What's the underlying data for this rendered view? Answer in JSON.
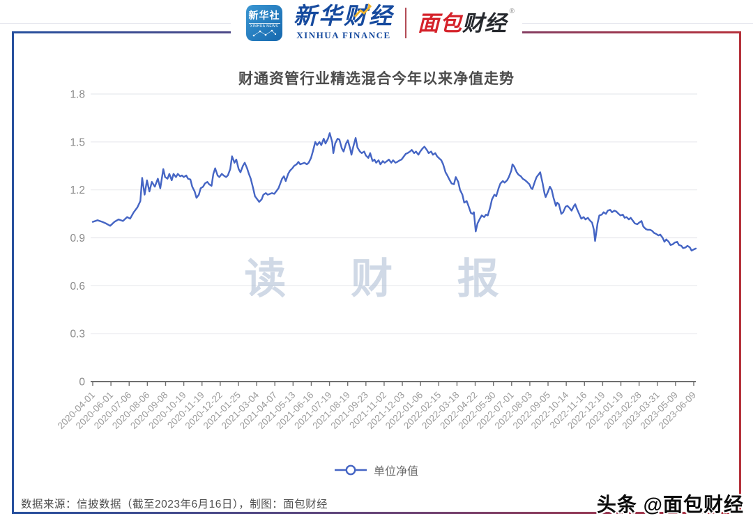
{
  "header": {
    "xinhua_news_icon": {
      "line1": "新华社",
      "line2": "XINHUA NEWS"
    },
    "xinhua_finance": {
      "cn": "新华财经",
      "en": "XINHUA FINANCE"
    },
    "mianbao_logo": {
      "part1": "面包",
      "part2": "财经",
      "reg_mark": "®"
    }
  },
  "footer": {
    "source_text": "数据来源：信披数据（截至2023年6月16日），制图：面包财经",
    "credit": "头条 @面包财经"
  },
  "watermark_text": "读 财 报",
  "colors": {
    "line": "#4565c4",
    "grid": "#e8e9ed",
    "axis": "#6f6f6f",
    "x_tick_label": "#9b9b9b",
    "y_tick_label": "#8a8a8a",
    "title": "#4c4c4c",
    "watermark": "#b4c3d8",
    "border_left_blue": "#27509e",
    "border_right_red": "#b5323c",
    "brand_blue": "#164a9e",
    "brand_red": "#d5232b"
  },
  "chart_data": {
    "type": "line",
    "title": "财通资管行业精选混合今年以来净值走势",
    "series_name": "单位净值",
    "legend_position": "bottom",
    "grid": true,
    "ylim": [
      0,
      1.8
    ],
    "y_ticks": [
      0,
      0.3,
      0.6,
      0.9,
      1.2,
      1.5,
      1.8
    ],
    "x_tick_labels": [
      "2020-04-01",
      "2020-06-01",
      "2020-07-06",
      "2020-08-06",
      "2020-09-08",
      "2020-10-19",
      "2020-11-19",
      "2020-12-22",
      "2021-01-25",
      "2021-03-04",
      "2021-04-07",
      "2021-05-13",
      "2021-06-16",
      "2021-07-19",
      "2021-08-19",
      "2021-09-23",
      "2021-11-02",
      "2021-12-03",
      "2022-01-06",
      "2022-02-15",
      "2022-03-18",
      "2022-04-22",
      "2022-05-30",
      "2022-07-01",
      "2022-08-03",
      "2022-09-05",
      "2022-10-14",
      "2022-11-16",
      "2022-12-19",
      "2023-01-19",
      "2023-02-28",
      "2023-03-31",
      "2023-05-09",
      "2023-06-09"
    ],
    "points": [
      [
        0.0,
        1.0
      ],
      [
        0.008,
        1.01
      ],
      [
        0.016,
        1.0
      ],
      [
        0.022,
        0.99
      ],
      [
        0.029,
        0.975
      ],
      [
        0.036,
        1.0
      ],
      [
        0.043,
        1.015
      ],
      [
        0.05,
        1.005
      ],
      [
        0.057,
        1.03
      ],
      [
        0.062,
        1.02
      ],
      [
        0.068,
        1.06
      ],
      [
        0.074,
        1.09
      ],
      [
        0.079,
        1.13
      ],
      [
        0.082,
        1.275
      ],
      [
        0.086,
        1.17
      ],
      [
        0.09,
        1.26
      ],
      [
        0.094,
        1.19
      ],
      [
        0.098,
        1.25
      ],
      [
        0.103,
        1.22
      ],
      [
        0.108,
        1.27
      ],
      [
        0.112,
        1.21
      ],
      [
        0.117,
        1.33
      ],
      [
        0.12,
        1.28
      ],
      [
        0.124,
        1.27
      ],
      [
        0.127,
        1.3
      ],
      [
        0.131,
        1.26
      ],
      [
        0.134,
        1.3
      ],
      [
        0.138,
        1.28
      ],
      [
        0.141,
        1.3
      ],
      [
        0.145,
        1.285
      ],
      [
        0.148,
        1.29
      ],
      [
        0.151,
        1.28
      ],
      [
        0.155,
        1.29
      ],
      [
        0.158,
        1.27
      ],
      [
        0.162,
        1.265
      ],
      [
        0.165,
        1.22
      ],
      [
        0.169,
        1.19
      ],
      [
        0.172,
        1.15
      ],
      [
        0.176,
        1.17
      ],
      [
        0.179,
        1.21
      ],
      [
        0.183,
        1.22
      ],
      [
        0.186,
        1.24
      ],
      [
        0.19,
        1.25
      ],
      [
        0.193,
        1.235
      ],
      [
        0.197,
        1.225
      ],
      [
        0.2,
        1.3
      ],
      [
        0.203,
        1.335
      ],
      [
        0.207,
        1.29
      ],
      [
        0.21,
        1.28
      ],
      [
        0.214,
        1.3
      ],
      [
        0.217,
        1.29
      ],
      [
        0.221,
        1.28
      ],
      [
        0.224,
        1.29
      ],
      [
        0.228,
        1.33
      ],
      [
        0.231,
        1.41
      ],
      [
        0.235,
        1.37
      ],
      [
        0.238,
        1.39
      ],
      [
        0.242,
        1.33
      ],
      [
        0.245,
        1.31
      ],
      [
        0.249,
        1.35
      ],
      [
        0.252,
        1.37
      ],
      [
        0.256,
        1.335
      ],
      [
        0.259,
        1.3
      ],
      [
        0.262,
        1.27
      ],
      [
        0.266,
        1.21
      ],
      [
        0.269,
        1.16
      ],
      [
        0.273,
        1.14
      ],
      [
        0.276,
        1.125
      ],
      [
        0.28,
        1.14
      ],
      [
        0.283,
        1.17
      ],
      [
        0.287,
        1.18
      ],
      [
        0.29,
        1.17
      ],
      [
        0.294,
        1.175
      ],
      [
        0.297,
        1.18
      ],
      [
        0.301,
        1.175
      ],
      [
        0.304,
        1.19
      ],
      [
        0.308,
        1.21
      ],
      [
        0.311,
        1.24
      ],
      [
        0.314,
        1.27
      ],
      [
        0.317,
        1.285
      ],
      [
        0.32,
        1.255
      ],
      [
        0.324,
        1.3
      ],
      [
        0.327,
        1.32
      ],
      [
        0.331,
        1.335
      ],
      [
        0.334,
        1.35
      ],
      [
        0.338,
        1.36
      ],
      [
        0.341,
        1.375
      ],
      [
        0.344,
        1.36
      ],
      [
        0.348,
        1.365
      ],
      [
        0.351,
        1.37
      ],
      [
        0.355,
        1.36
      ],
      [
        0.358,
        1.37
      ],
      [
        0.362,
        1.4
      ],
      [
        0.365,
        1.44
      ],
      [
        0.369,
        1.5
      ],
      [
        0.372,
        1.48
      ],
      [
        0.376,
        1.5
      ],
      [
        0.379,
        1.48
      ],
      [
        0.383,
        1.52
      ],
      [
        0.386,
        1.49
      ],
      [
        0.39,
        1.52
      ],
      [
        0.393,
        1.555
      ],
      [
        0.397,
        1.5
      ],
      [
        0.399,
        1.43
      ],
      [
        0.402,
        1.49
      ],
      [
        0.406,
        1.52
      ],
      [
        0.409,
        1.515
      ],
      [
        0.413,
        1.46
      ],
      [
        0.416,
        1.44
      ],
      [
        0.42,
        1.49
      ],
      [
        0.423,
        1.51
      ],
      [
        0.427,
        1.455
      ],
      [
        0.429,
        1.42
      ],
      [
        0.432,
        1.47
      ],
      [
        0.436,
        1.525
      ],
      [
        0.439,
        1.465
      ],
      [
        0.443,
        1.44
      ],
      [
        0.446,
        1.43
      ],
      [
        0.45,
        1.44
      ],
      [
        0.453,
        1.415
      ],
      [
        0.457,
        1.4
      ],
      [
        0.46,
        1.43
      ],
      [
        0.464,
        1.38
      ],
      [
        0.467,
        1.39
      ],
      [
        0.47,
        1.37
      ],
      [
        0.474,
        1.385
      ],
      [
        0.477,
        1.36
      ],
      [
        0.481,
        1.38
      ],
      [
        0.484,
        1.37
      ],
      [
        0.488,
        1.38
      ],
      [
        0.491,
        1.39
      ],
      [
        0.495,
        1.37
      ],
      [
        0.498,
        1.385
      ],
      [
        0.502,
        1.37
      ],
      [
        0.505,
        1.375
      ],
      [
        0.509,
        1.385
      ],
      [
        0.512,
        1.39
      ],
      [
        0.516,
        1.41
      ],
      [
        0.519,
        1.425
      ],
      [
        0.522,
        1.43
      ],
      [
        0.526,
        1.44
      ],
      [
        0.529,
        1.45
      ],
      [
        0.533,
        1.43
      ],
      [
        0.536,
        1.44
      ],
      [
        0.54,
        1.42
      ],
      [
        0.543,
        1.44
      ],
      [
        0.547,
        1.46
      ],
      [
        0.55,
        1.47
      ],
      [
        0.554,
        1.45
      ],
      [
        0.557,
        1.43
      ],
      [
        0.561,
        1.44
      ],
      [
        0.564,
        1.42
      ],
      [
        0.568,
        1.43
      ],
      [
        0.571,
        1.41
      ],
      [
        0.575,
        1.395
      ],
      [
        0.578,
        1.385
      ],
      [
        0.581,
        1.36
      ],
      [
        0.585,
        1.31
      ],
      [
        0.588,
        1.29
      ],
      [
        0.592,
        1.26
      ],
      [
        0.595,
        1.24
      ],
      [
        0.599,
        1.235
      ],
      [
        0.602,
        1.28
      ],
      [
        0.606,
        1.25
      ],
      [
        0.609,
        1.2
      ],
      [
        0.613,
        1.17
      ],
      [
        0.616,
        1.12
      ],
      [
        0.62,
        1.13
      ],
      [
        0.623,
        1.1
      ],
      [
        0.627,
        1.055
      ],
      [
        0.63,
        1.05
      ],
      [
        0.632,
        1.06
      ],
      [
        0.635,
        0.94
      ],
      [
        0.638,
        0.99
      ],
      [
        0.642,
        1.02
      ],
      [
        0.645,
        1.04
      ],
      [
        0.649,
        1.03
      ],
      [
        0.652,
        1.045
      ],
      [
        0.655,
        1.04
      ],
      [
        0.659,
        1.09
      ],
      [
        0.662,
        1.14
      ],
      [
        0.666,
        1.17
      ],
      [
        0.669,
        1.16
      ],
      [
        0.673,
        1.21
      ],
      [
        0.676,
        1.24
      ],
      [
        0.68,
        1.255
      ],
      [
        0.683,
        1.245
      ],
      [
        0.687,
        1.26
      ],
      [
        0.69,
        1.28
      ],
      [
        0.694,
        1.32
      ],
      [
        0.696,
        1.36
      ],
      [
        0.699,
        1.345
      ],
      [
        0.703,
        1.31
      ],
      [
        0.706,
        1.295
      ],
      [
        0.71,
        1.285
      ],
      [
        0.713,
        1.27
      ],
      [
        0.717,
        1.26
      ],
      [
        0.72,
        1.25
      ],
      [
        0.724,
        1.235
      ],
      [
        0.727,
        1.21
      ],
      [
        0.729,
        1.205
      ],
      [
        0.733,
        1.25
      ],
      [
        0.736,
        1.28
      ],
      [
        0.74,
        1.3
      ],
      [
        0.742,
        1.31
      ],
      [
        0.746,
        1.24
      ],
      [
        0.749,
        1.18
      ],
      [
        0.751,
        1.155
      ],
      [
        0.755,
        1.19
      ],
      [
        0.758,
        1.22
      ],
      [
        0.761,
        1.2
      ],
      [
        0.764,
        1.15
      ],
      [
        0.768,
        1.1
      ],
      [
        0.77,
        1.12
      ],
      [
        0.773,
        1.11
      ],
      [
        0.777,
        1.05
      ],
      [
        0.78,
        1.06
      ],
      [
        0.784,
        1.095
      ],
      [
        0.787,
        1.1
      ],
      [
        0.791,
        1.085
      ],
      [
        0.794,
        1.07
      ],
      [
        0.798,
        1.1
      ],
      [
        0.8,
        1.11
      ],
      [
        0.803,
        1.08
      ],
      [
        0.807,
        1.045
      ],
      [
        0.81,
        1.02
      ],
      [
        0.814,
        1.03
      ],
      [
        0.817,
        1.015
      ],
      [
        0.821,
        1.025
      ],
      [
        0.824,
        1.01
      ],
      [
        0.828,
        0.995
      ],
      [
        0.831,
        0.95
      ],
      [
        0.833,
        0.88
      ],
      [
        0.837,
        0.99
      ],
      [
        0.84,
        1.04
      ],
      [
        0.844,
        1.045
      ],
      [
        0.847,
        1.06
      ],
      [
        0.851,
        1.05
      ],
      [
        0.854,
        1.07
      ],
      [
        0.858,
        1.075
      ],
      [
        0.861,
        1.06
      ],
      [
        0.865,
        1.07
      ],
      [
        0.868,
        1.065
      ],
      [
        0.872,
        1.05
      ],
      [
        0.875,
        1.04
      ],
      [
        0.879,
        1.045
      ],
      [
        0.882,
        1.025
      ],
      [
        0.885,
        1.03
      ],
      [
        0.889,
        1.015
      ],
      [
        0.892,
        1.025
      ],
      [
        0.896,
        1.005
      ],
      [
        0.899,
        0.99
      ],
      [
        0.903,
        0.985
      ],
      [
        0.906,
        0.995
      ],
      [
        0.91,
        1.005
      ],
      [
        0.913,
        0.97
      ],
      [
        0.917,
        0.955
      ],
      [
        0.92,
        0.95
      ],
      [
        0.924,
        0.95
      ],
      [
        0.927,
        0.945
      ],
      [
        0.931,
        0.93
      ],
      [
        0.934,
        0.925
      ],
      [
        0.938,
        0.915
      ],
      [
        0.941,
        0.92
      ],
      [
        0.945,
        0.9
      ],
      [
        0.948,
        0.875
      ],
      [
        0.951,
        0.89
      ],
      [
        0.955,
        0.875
      ],
      [
        0.958,
        0.855
      ],
      [
        0.962,
        0.86
      ],
      [
        0.965,
        0.87
      ],
      [
        0.969,
        0.875
      ],
      [
        0.972,
        0.855
      ],
      [
        0.976,
        0.85
      ],
      [
        0.979,
        0.835
      ],
      [
        0.983,
        0.84
      ],
      [
        0.986,
        0.85
      ],
      [
        0.99,
        0.84
      ],
      [
        0.993,
        0.82
      ],
      [
        0.997,
        0.828
      ],
      [
        1.0,
        0.833
      ]
    ]
  }
}
